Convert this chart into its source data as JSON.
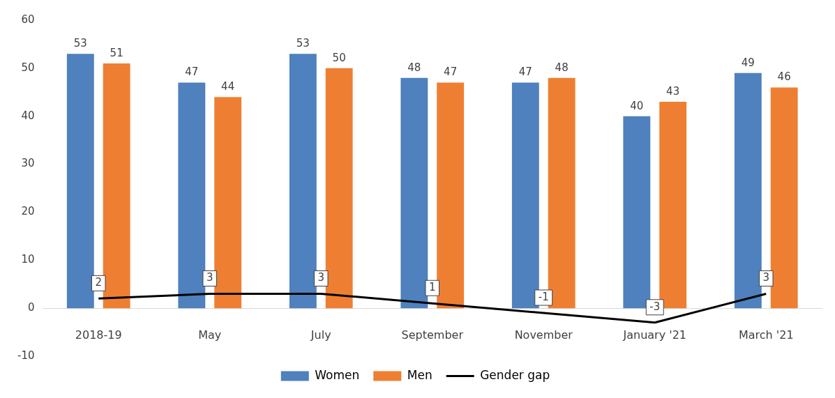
{
  "chart_data": {
    "type": "bar",
    "categories": [
      "2018-19",
      "May",
      "July",
      "September",
      "November",
      "January '21",
      "March '21"
    ],
    "series": [
      {
        "name": "Women",
        "color": "#4e81bd",
        "values": [
          53,
          47,
          53,
          48,
          47,
          40,
          49
        ]
      },
      {
        "name": "Men",
        "color": "#ee7f32",
        "values": [
          51,
          44,
          50,
          47,
          48,
          43,
          46
        ]
      },
      {
        "name": "Gender gap",
        "type": "line",
        "color": "#000000",
        "values": [
          2,
          3,
          3,
          1,
          -1,
          -3,
          3
        ]
      }
    ],
    "ylim": [
      -10,
      60
    ],
    "yticks": [
      -10,
      0,
      10,
      20,
      30,
      40,
      50,
      60
    ],
    "grid": false,
    "legend": "bottom",
    "marker": "none",
    "line_style": "solid",
    "data_labels": true
  }
}
